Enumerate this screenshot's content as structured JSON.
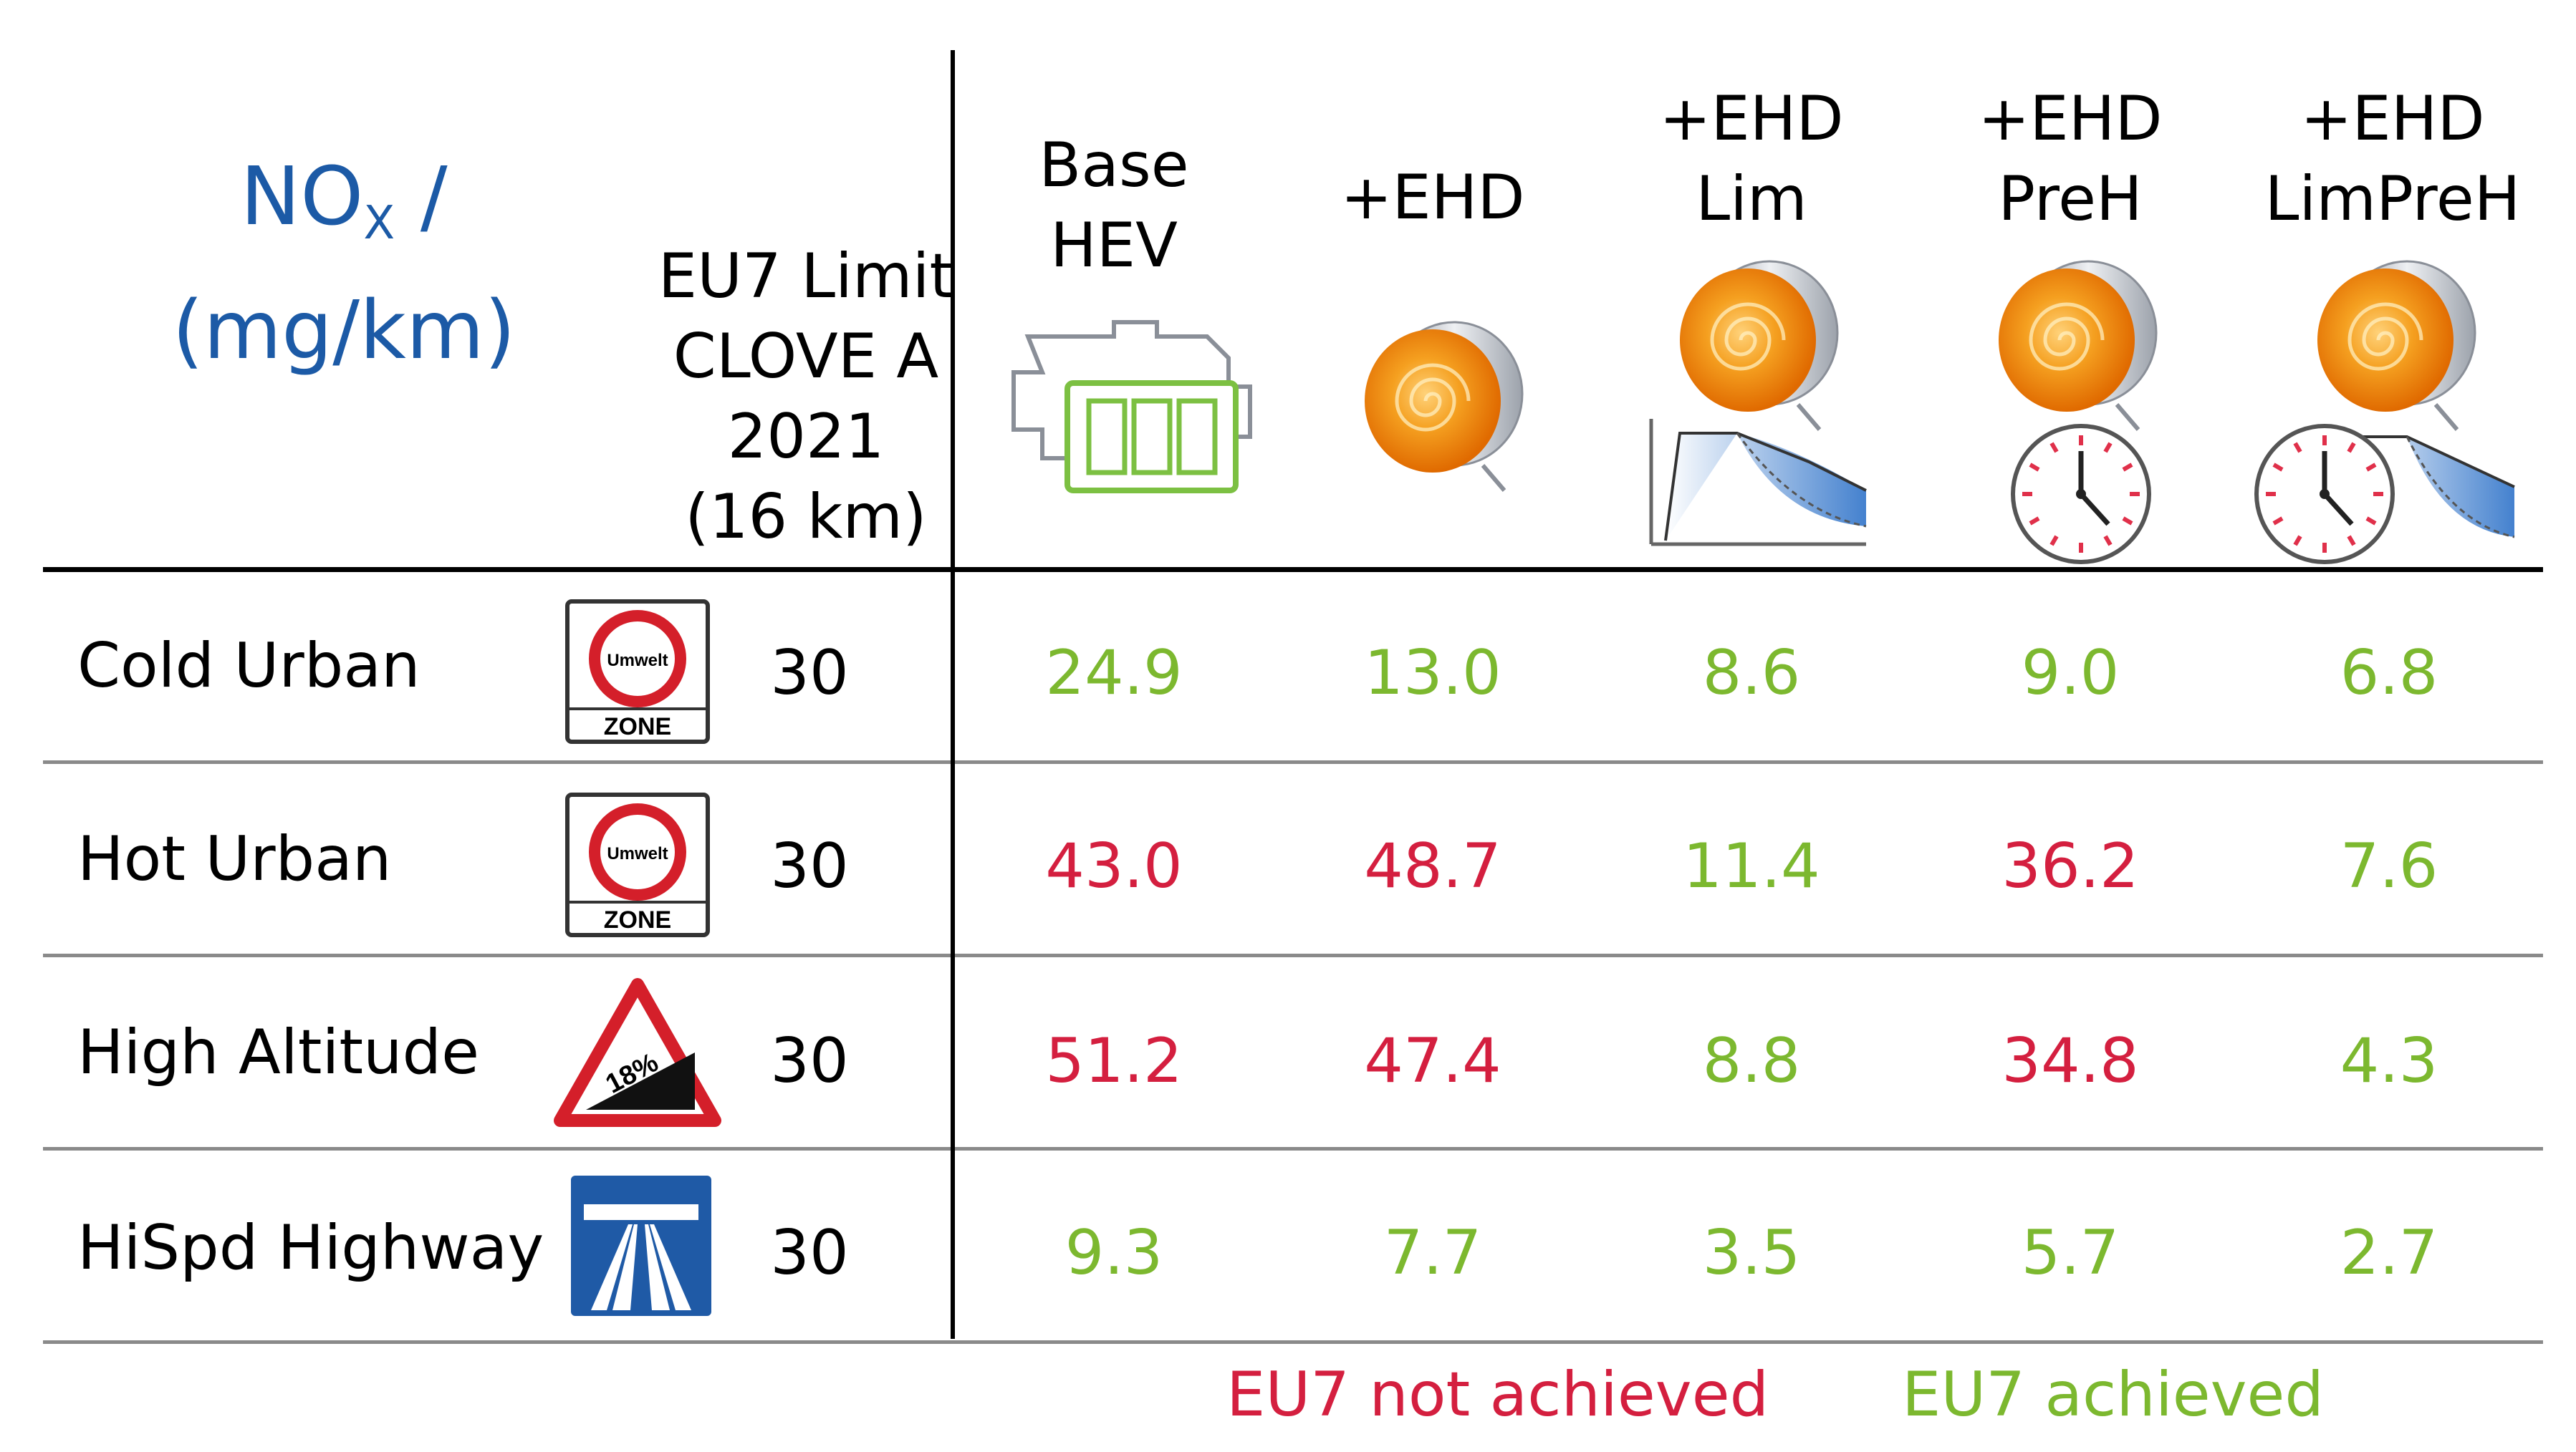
{
  "header": {
    "unit_line1_prefix": "NO",
    "unit_line1_sub": "X",
    "unit_line1_suffix": " /",
    "unit_line2": "(mg/km)",
    "limit_header": [
      "EU7 Limit",
      "CLOVE A",
      "2021",
      "(16 km)"
    ]
  },
  "columns": [
    {
      "label": [
        "Base",
        "HEV"
      ],
      "icon": "engine-battery-icon"
    },
    {
      "label": [
        "+EHD"
      ],
      "icon": "heated-catalyst-icon"
    },
    {
      "label": [
        "+EHD",
        "Lim"
      ],
      "icon": "heated-catalyst-icon"
    },
    {
      "label": [
        "+EHD",
        "PreH"
      ],
      "icon": "heated-catalyst-icon"
    },
    {
      "label": [
        "+EHD",
        "LimPreH"
      ],
      "icon": "heated-catalyst-icon"
    }
  ],
  "rows": [
    {
      "label": "Cold Urban",
      "icon": "environmental-zone-sign-icon",
      "sign_text": [
        "Umwelt",
        "ZONE"
      ],
      "limit": "30",
      "values": [
        "24.9",
        "13.0",
        "8.6",
        "9.0",
        "6.8"
      ],
      "status": [
        "achieved",
        "achieved",
        "achieved",
        "achieved",
        "achieved"
      ]
    },
    {
      "label": "Hot Urban",
      "icon": "environmental-zone-sign-icon",
      "sign_text": [
        "Umwelt",
        "ZONE"
      ],
      "limit": "30",
      "values": [
        "43.0",
        "48.7",
        "11.4",
        "36.2",
        "7.6"
      ],
      "status": [
        "not",
        "not",
        "achieved",
        "not",
        "achieved"
      ]
    },
    {
      "label": "High Altitude",
      "icon": "steep-grade-sign-icon",
      "sign_text": [
        "18%"
      ],
      "limit": "30",
      "values": [
        "51.2",
        "47.4",
        "8.8",
        "34.8",
        "4.3"
      ],
      "status": [
        "not",
        "not",
        "achieved",
        "not",
        "achieved"
      ]
    },
    {
      "label": "HiSpd Highway",
      "icon": "motorway-sign-icon",
      "limit": "30",
      "values": [
        "9.3",
        "7.7",
        "3.5",
        "5.7",
        "2.7"
      ],
      "status": [
        "achieved",
        "achieved",
        "achieved",
        "achieved",
        "achieved"
      ]
    }
  ],
  "legend": {
    "not_achieved": "EU7 not achieved",
    "achieved": "EU7 achieved"
  },
  "colors": {
    "achieved": "#7cb82f",
    "not_achieved": "#d41f3f",
    "unit_blue": "#1c5aa6"
  }
}
